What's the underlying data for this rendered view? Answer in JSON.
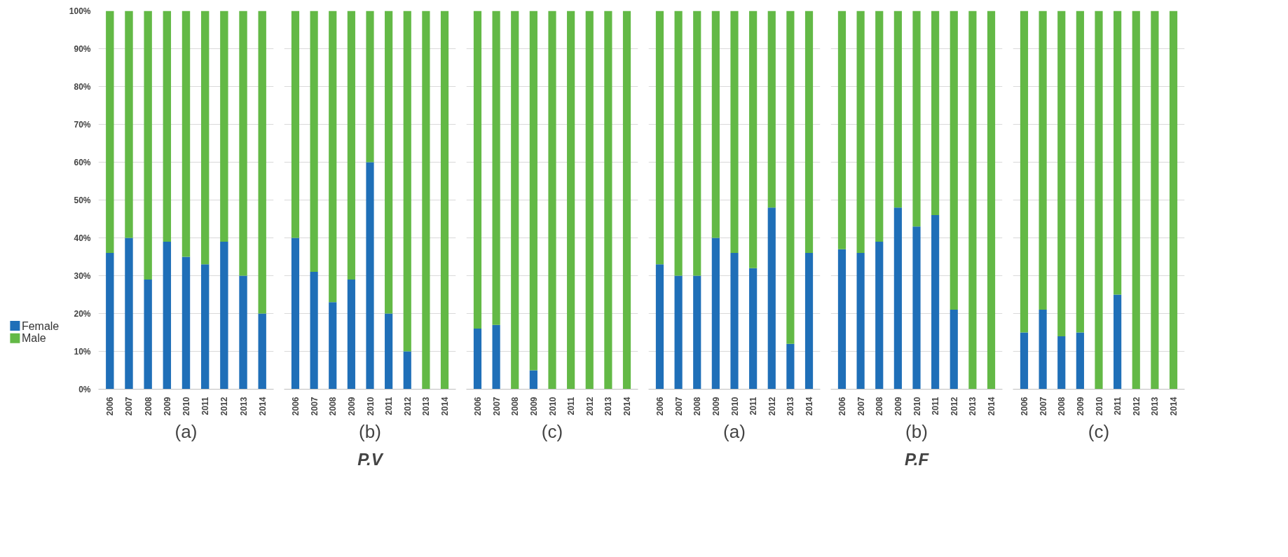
{
  "chart_data": [
    {
      "type": "bar",
      "stacked": true,
      "xlabel": "(a)",
      "categories": [
        "2006",
        "2007",
        "2008",
        "2009",
        "2010",
        "2011",
        "2012",
        "2013",
        "2014"
      ],
      "ylim": [
        0,
        1
      ],
      "yticks": [
        {
          "value": 0,
          "label": "0%"
        },
        {
          "value": 0.1,
          "label": "10%"
        },
        {
          "value": 0.2,
          "label": "20%"
        },
        {
          "value": 0.3,
          "label": "30%"
        },
        {
          "value": 0.4,
          "label": "40%"
        },
        {
          "value": 0.5,
          "label": "50%"
        },
        {
          "value": 0.6,
          "label": "60%"
        },
        {
          "value": 0.7,
          "label": "70%"
        },
        {
          "value": 0.8,
          "label": "80%"
        },
        {
          "value": 0.9,
          "label": "90%"
        },
        {
          "value": 1,
          "label": "100%"
        }
      ],
      "grid": "y",
      "legend": "bottom left",
      "series": [
        {
          "name": "Female",
          "color": "#1f6fb8",
          "values": [
            0.36,
            0.4,
            0.29,
            0.39,
            0.35,
            0.33,
            0.39,
            0.3,
            0.2
          ]
        },
        {
          "name": "Male",
          "color": "#63b946",
          "values": [
            0.64,
            0.6,
            0.71,
            0.61,
            0.65,
            0.67,
            0.61,
            0.7,
            0.8
          ]
        }
      ]
    },
    {
      "type": "bar",
      "stacked": true,
      "xlabel": "(b)",
      "annotations": [
        "P.V"
      ],
      "tick_labels": "x",
      "categories": [
        "2006",
        "2007",
        "2008",
        "2009",
        "2010",
        "2011",
        "2012",
        "2013",
        "2014"
      ],
      "ylim": [
        0,
        1
      ],
      "yticks": [
        {
          "value": 0,
          "label": null
        },
        {
          "value": 0.1,
          "label": null
        },
        {
          "value": 0.2,
          "label": null
        },
        {
          "value": 0.3,
          "label": null
        },
        {
          "value": 0.4,
          "label": null
        },
        {
          "value": 0.5,
          "label": null
        },
        {
          "value": 0.6,
          "label": null
        },
        {
          "value": 0.7,
          "label": null
        },
        {
          "value": 0.8,
          "label": null
        },
        {
          "value": 0.9,
          "label": null
        },
        {
          "value": 1,
          "label": null
        }
      ],
      "grid": "y",
      "series": [
        {
          "color": "#1f6fb8",
          "values": [
            0.4,
            0.31,
            0.23,
            0.29,
            0.6,
            0.2,
            0.1,
            0,
            0
          ]
        },
        {
          "color": "#63b946",
          "values": [
            0.6,
            0.69,
            0.77,
            0.71,
            0.4,
            0.8,
            0.9,
            1,
            1
          ]
        }
      ]
    },
    {
      "type": "bar",
      "stacked": true,
      "xlabel": "(c)",
      "tick_labels": "x",
      "categories": [
        "2006",
        "2007",
        "2008",
        "2009",
        "2010",
        "2011",
        "2012",
        "2013",
        "2014"
      ],
      "ylim": [
        0,
        1
      ],
      "yticks": [
        {
          "value": 0,
          "label": null
        },
        {
          "value": 0.1,
          "label": null
        },
        {
          "value": 0.2,
          "label": null
        },
        {
          "value": 0.3,
          "label": null
        },
        {
          "value": 0.4,
          "label": null
        },
        {
          "value": 0.5,
          "label": null
        },
        {
          "value": 0.6,
          "label": null
        },
        {
          "value": 0.7,
          "label": null
        },
        {
          "value": 0.8,
          "label": null
        },
        {
          "value": 0.9,
          "label": null
        },
        {
          "value": 1,
          "label": null
        }
      ],
      "grid": "y",
      "series": [
        {
          "color": "#1f6fb8",
          "values": [
            0.16,
            0.17,
            0,
            0.05,
            0,
            0,
            0,
            0,
            0
          ]
        },
        {
          "color": "#63b946",
          "values": [
            0.84,
            0.83,
            1,
            0.95,
            1,
            1,
            1,
            1,
            1
          ]
        }
      ]
    },
    {
      "type": "bar",
      "stacked": true,
      "xlabel": "(a)",
      "tick_labels": "x",
      "categories": [
        "2006",
        "2007",
        "2008",
        "2009",
        "2010",
        "2011",
        "2012",
        "2013",
        "2014"
      ],
      "ylim": [
        0,
        1
      ],
      "yticks": [
        {
          "value": 0,
          "label": null
        },
        {
          "value": 0.1,
          "label": null
        },
        {
          "value": 0.2,
          "label": null
        },
        {
          "value": 0.3,
          "label": null
        },
        {
          "value": 0.4,
          "label": null
        },
        {
          "value": 0.5,
          "label": null
        },
        {
          "value": 0.6,
          "label": null
        },
        {
          "value": 0.7,
          "label": null
        },
        {
          "value": 0.8,
          "label": null
        },
        {
          "value": 0.9,
          "label": null
        },
        {
          "value": 1,
          "label": null
        }
      ],
      "grid": "y",
      "series": [
        {
          "color": "#1f6fb8",
          "values": [
            0.33,
            0.3,
            0.3,
            0.4,
            0.36,
            0.32,
            0.48,
            0.12,
            0.36
          ]
        },
        {
          "color": "#63b946",
          "values": [
            0.67,
            0.7,
            0.7,
            0.6,
            0.64,
            0.68,
            0.52,
            0.88,
            0.64
          ]
        }
      ]
    },
    {
      "type": "bar",
      "stacked": true,
      "xlabel": "(b)",
      "annotations": [
        "P.F"
      ],
      "tick_labels": "x",
      "categories": [
        "2006",
        "2007",
        "2008",
        "2009",
        "2010",
        "2011",
        "2012",
        "2013",
        "2014"
      ],
      "ylim": [
        0,
        1
      ],
      "yticks": [
        {
          "value": 0,
          "label": null
        },
        {
          "value": 0.1,
          "label": null
        },
        {
          "value": 0.2,
          "label": null
        },
        {
          "value": 0.3,
          "label": null
        },
        {
          "value": 0.4,
          "label": null
        },
        {
          "value": 0.5,
          "label": null
        },
        {
          "value": 0.6,
          "label": null
        },
        {
          "value": 0.7,
          "label": null
        },
        {
          "value": 0.8,
          "label": null
        },
        {
          "value": 0.9,
          "label": null
        },
        {
          "value": 1,
          "label": null
        }
      ],
      "grid": "y",
      "series": [
        {
          "color": "#1f6fb8",
          "values": [
            0.37,
            0.36,
            0.39,
            0.48,
            0.43,
            0.46,
            0.21,
            0,
            0
          ]
        },
        {
          "color": "#63b946",
          "values": [
            0.63,
            0.64,
            0.61,
            0.52,
            0.57,
            0.54,
            0.79,
            1,
            1
          ]
        }
      ]
    },
    {
      "type": "bar",
      "stacked": true,
      "xlabel": "(c)",
      "tick_labels": "x",
      "categories": [
        "2006",
        "2007",
        "2008",
        "2009",
        "2010",
        "2011",
        "2012",
        "2013",
        "2014"
      ],
      "ylim": [
        0,
        1
      ],
      "yticks": [
        {
          "value": 0,
          "label": null
        },
        {
          "value": 0.1,
          "label": null
        },
        {
          "value": 0.2,
          "label": null
        },
        {
          "value": 0.3,
          "label": null
        },
        {
          "value": 0.4,
          "label": null
        },
        {
          "value": 0.5,
          "label": null
        },
        {
          "value": 0.6,
          "label": null
        },
        {
          "value": 0.7,
          "label": null
        },
        {
          "value": 0.8,
          "label": null
        },
        {
          "value": 0.9,
          "label": null
        },
        {
          "value": 1,
          "label": null
        }
      ],
      "grid": "y",
      "series": [
        {
          "color": "#1f6fb8",
          "values": [
            0.15,
            0.21,
            0.14,
            0.15,
            0,
            0.25,
            0,
            0,
            0
          ]
        },
        {
          "color": "#63b946",
          "values": [
            0.85,
            0.79,
            0.86,
            0.85,
            1,
            0.75,
            1,
            1,
            1
          ]
        }
      ]
    }
  ]
}
